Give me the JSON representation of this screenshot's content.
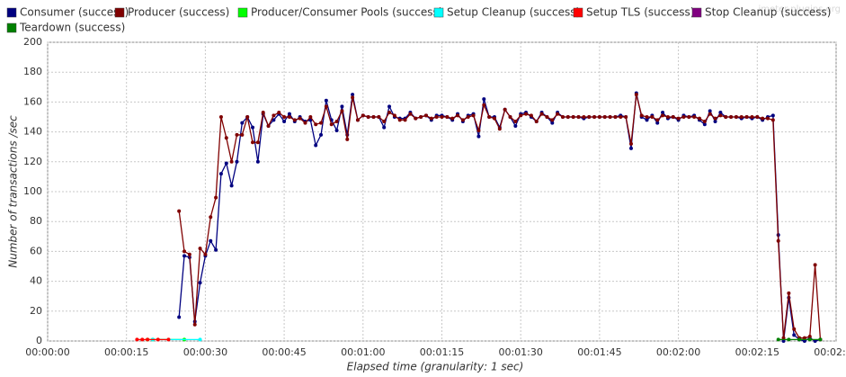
{
  "chart_data": {
    "type": "line",
    "watermark": "jmeter-plugins.org",
    "y_label": "Number of transactions /sec",
    "x_label": "Elapsed time (granularity: 1 sec)",
    "xlim": [
      0,
      150
    ],
    "ylim": [
      0,
      200
    ],
    "grid": true,
    "legend": "top",
    "xticks": [
      {
        "value": 0,
        "label": "00:00:00"
      },
      {
        "value": 15,
        "label": "00:00:15"
      },
      {
        "value": 30,
        "label": "00:00:30"
      },
      {
        "value": 45,
        "label": "00:00:45"
      },
      {
        "value": 60,
        "label": "00:01:00"
      },
      {
        "value": 75,
        "label": "00:01:15"
      },
      {
        "value": 90,
        "label": "00:01:30"
      },
      {
        "value": 105,
        "label": "00:01:45"
      },
      {
        "value": 120,
        "label": "00:02:00"
      },
      {
        "value": 135,
        "label": "00:02:15"
      },
      {
        "value": 150,
        "label": "00:02:30"
      }
    ],
    "yticks": [
      0,
      20,
      40,
      60,
      80,
      100,
      120,
      140,
      160,
      180,
      200
    ],
    "x": [
      25,
      26,
      27,
      28,
      29,
      30,
      31,
      32,
      33,
      34,
      35,
      36,
      37,
      38,
      39,
      40,
      41,
      42,
      43,
      44,
      45,
      46,
      47,
      48,
      49,
      50,
      51,
      52,
      53,
      54,
      55,
      56,
      57,
      58,
      59,
      60,
      61,
      62,
      63,
      64,
      65,
      66,
      67,
      68,
      69,
      70,
      71,
      72,
      73,
      74,
      75,
      76,
      77,
      78,
      79,
      80,
      81,
      82,
      83,
      84,
      85,
      86,
      87,
      88,
      89,
      90,
      91,
      92,
      93,
      94,
      95,
      96,
      97,
      98,
      99,
      100,
      101,
      102,
      103,
      104,
      105,
      106,
      107,
      108,
      109,
      110,
      111,
      112,
      113,
      114,
      115,
      116,
      117,
      118,
      119,
      120,
      121,
      122,
      123,
      124,
      125,
      126,
      127,
      128,
      129,
      130,
      131,
      132,
      133,
      134,
      135,
      136,
      137,
      138,
      139,
      140,
      141,
      142,
      143,
      144,
      145,
      146,
      147
    ],
    "series": [
      {
        "name": "Consumer (success)",
        "color": "#000080",
        "values": [
          16,
          57,
          56,
          13,
          39,
          57,
          67,
          61,
          112,
          119,
          104,
          120,
          146,
          150,
          143,
          120,
          152,
          144,
          148,
          152,
          147,
          152,
          147,
          150,
          147,
          148,
          131,
          138,
          161,
          148,
          141,
          157,
          138,
          165,
          148,
          151,
          150,
          150,
          150,
          143,
          157,
          150,
          149,
          149,
          153,
          149,
          150,
          151,
          148,
          151,
          151,
          150,
          148,
          152,
          147,
          151,
          152,
          137,
          162,
          150,
          150,
          143,
          155,
          150,
          144,
          152,
          153,
          150,
          147,
          153,
          150,
          146,
          153,
          150,
          150,
          150,
          150,
          149,
          150,
          150,
          150,
          150,
          150,
          150,
          151,
          150,
          129,
          166,
          150,
          148,
          151,
          146,
          153,
          149,
          150,
          148,
          151,
          150,
          151,
          148,
          145,
          154,
          147,
          153,
          150,
          150,
          150,
          149,
          150,
          149,
          150,
          148,
          150,
          151,
          71,
          0,
          29,
          4,
          1,
          0,
          2,
          0,
          1
        ]
      },
      {
        "name": "Producer (success)",
        "color": "#800000",
        "values": [
          87,
          60,
          58,
          11,
          62,
          58,
          83,
          96,
          150,
          136,
          120,
          138,
          138,
          150,
          133,
          133,
          153,
          144,
          151,
          153,
          150,
          150,
          148,
          149,
          146,
          150,
          145,
          146,
          157,
          145,
          147,
          154,
          135,
          163,
          148,
          151,
          150,
          150,
          150,
          147,
          153,
          151,
          148,
          148,
          152,
          149,
          150,
          151,
          149,
          150,
          150,
          150,
          149,
          151,
          148,
          150,
          151,
          141,
          158,
          150,
          149,
          142,
          155,
          150,
          147,
          151,
          152,
          151,
          147,
          152,
          150,
          148,
          152,
          150,
          150,
          150,
          150,
          150,
          150,
          150,
          150,
          150,
          150,
          150,
          150,
          150,
          132,
          165,
          151,
          150,
          150,
          148,
          151,
          150,
          150,
          149,
          150,
          150,
          150,
          149,
          147,
          152,
          149,
          151,
          150,
          150,
          150,
          150,
          150,
          150,
          150,
          149,
          149,
          148,
          67,
          2,
          32,
          8,
          2,
          2,
          3,
          51,
          1
        ]
      },
      {
        "name": "Producer/Consumer Pools (success)",
        "color": "#00ff00",
        "x": [
          19,
          20,
          26
        ],
        "values": [
          1,
          1,
          1
        ]
      },
      {
        "name": "Setup Cleanup (success)",
        "color": "#00ffff",
        "x": [
          20,
          29
        ],
        "values": [
          1,
          1
        ]
      },
      {
        "name": "Setup TLS (success)",
        "color": "#ff0000",
        "x": [
          17,
          18,
          19,
          21,
          23
        ],
        "values": [
          1,
          1,
          1,
          1,
          1
        ]
      },
      {
        "name": "Stop Cleanup (success)",
        "color": "#800080",
        "x": [],
        "values": []
      },
      {
        "name": "Teardown (success)",
        "color": "#008000",
        "x": [
          139,
          141,
          143,
          145,
          147
        ],
        "values": [
          1,
          1,
          1,
          1,
          1
        ]
      }
    ]
  }
}
